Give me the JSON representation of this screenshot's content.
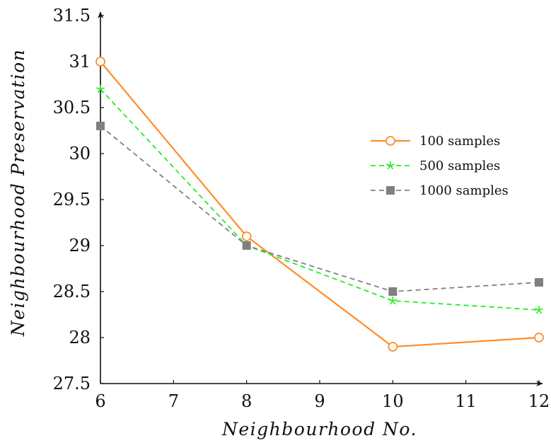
{
  "chart_data": {
    "type": "line",
    "title": "",
    "xlabel": "Neighbourhood No.",
    "ylabel": "Neighbourhood Preservation",
    "x_ticks": [
      "6",
      "7",
      "8",
      "9",
      "10",
      "11",
      "12"
    ],
    "y_ticks": [
      "27.5",
      "28",
      "28.5",
      "29",
      "29.5",
      "30",
      "30.5",
      "31",
      "31.5"
    ],
    "xlim": [
      6,
      12
    ],
    "ylim": [
      27.5,
      31.5
    ],
    "grid": false,
    "legend_position": "right",
    "x": [
      6,
      8,
      10,
      12
    ],
    "series": [
      {
        "name": "100 samples",
        "values": [
          31.0,
          29.1,
          27.9,
          28.0
        ],
        "color": "#ff8c2a",
        "marker": "circle",
        "dash": "solid"
      },
      {
        "name": "500 samples",
        "values": [
          30.7,
          29.0,
          28.4,
          28.3
        ],
        "color": "#22ee22",
        "marker": "star",
        "dash": "dashed"
      },
      {
        "name": "1000 samples",
        "values": [
          30.3,
          29.0,
          28.5,
          28.6
        ],
        "color": "#808080",
        "marker": "square",
        "dash": "dashed"
      }
    ]
  }
}
